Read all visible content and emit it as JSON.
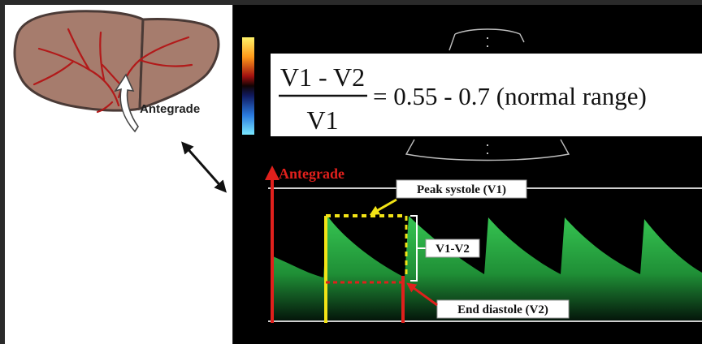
{
  "liver_panel": {
    "flow_label": "Antegrade"
  },
  "equation": {
    "numerator": "V1 - V2",
    "denominator": "V1",
    "result": "= 0.55 - 0.7 (normal range)"
  },
  "waveform": {
    "direction_label": "Antegrade",
    "peak_label": "Peak systole (V1)",
    "delta_label": "V1-V2",
    "trough_label": "End diastole (V2)"
  },
  "colors": {
    "background": "#2a2a2a",
    "ultrasound": "#000000",
    "liver_fill": "#a67c6d",
    "vessel": "#b21a1a",
    "waveform_green": "#2fb24a",
    "antegrade_red": "#e0201c",
    "peak_yellow": "#f2e316"
  }
}
